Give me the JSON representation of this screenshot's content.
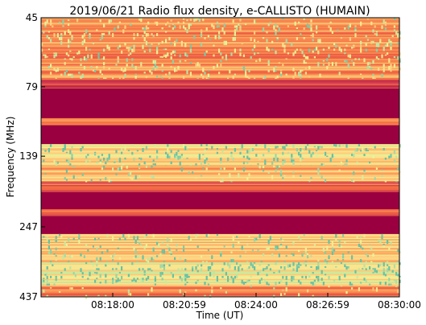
{
  "chart_data": {
    "type": "heatmap",
    "title": "2019/06/21  Radio flux density, e-CALLISTO (HUMAIN)",
    "xlabel": "Time (UT)",
    "ylabel": "Frequency (MHz)",
    "x_ticks": [
      "08:18:00",
      "08:20:59",
      "08:24:00",
      "08:26:59",
      "08:30:00"
    ],
    "y_ticks": [
      "45",
      "79",
      "139",
      "247",
      "437"
    ],
    "colormap": "Spectral_r",
    "colors": {
      "saturated_band": "#9a0040",
      "low": "#b5234b",
      "mid": "#f26d4a",
      "high": "#fee08b",
      "peak": "#86cfa5"
    },
    "bands": [
      {
        "f_from": 45,
        "f_to": 74,
        "kind": "noisy",
        "level": 0.38,
        "speck_prob": 0.09
      },
      {
        "f_from": 74,
        "f_to": 80,
        "kind": "plain",
        "level": 0.22
      },
      {
        "f_from": 80,
        "f_to": 102,
        "kind": "saturated"
      },
      {
        "f_from": 102,
        "f_to": 108,
        "kind": "plain",
        "level": 0.35
      },
      {
        "f_from": 108,
        "f_to": 126,
        "kind": "saturated"
      },
      {
        "f_from": 126,
        "f_to": 150,
        "kind": "noisy",
        "level": 0.62,
        "speck_prob": 0.1
      },
      {
        "f_from": 150,
        "f_to": 172,
        "kind": "noisy",
        "level": 0.48,
        "speck_prob": 0.05
      },
      {
        "f_from": 172,
        "f_to": 186,
        "kind": "plain",
        "level": 0.24
      },
      {
        "f_from": 186,
        "f_to": 214,
        "kind": "saturated"
      },
      {
        "f_from": 214,
        "f_to": 226,
        "kind": "plain",
        "level": 0.28
      },
      {
        "f_from": 226,
        "f_to": 262,
        "kind": "saturated"
      },
      {
        "f_from": 262,
        "f_to": 330,
        "kind": "noisy",
        "level": 0.55,
        "speck_prob": 0.08
      },
      {
        "f_from": 330,
        "f_to": 398,
        "kind": "noisy",
        "level": 0.68,
        "speck_prob": 0.12
      },
      {
        "f_from": 398,
        "f_to": 437,
        "kind": "noisy",
        "level": 0.34,
        "speck_prob": 0.04
      }
    ]
  }
}
